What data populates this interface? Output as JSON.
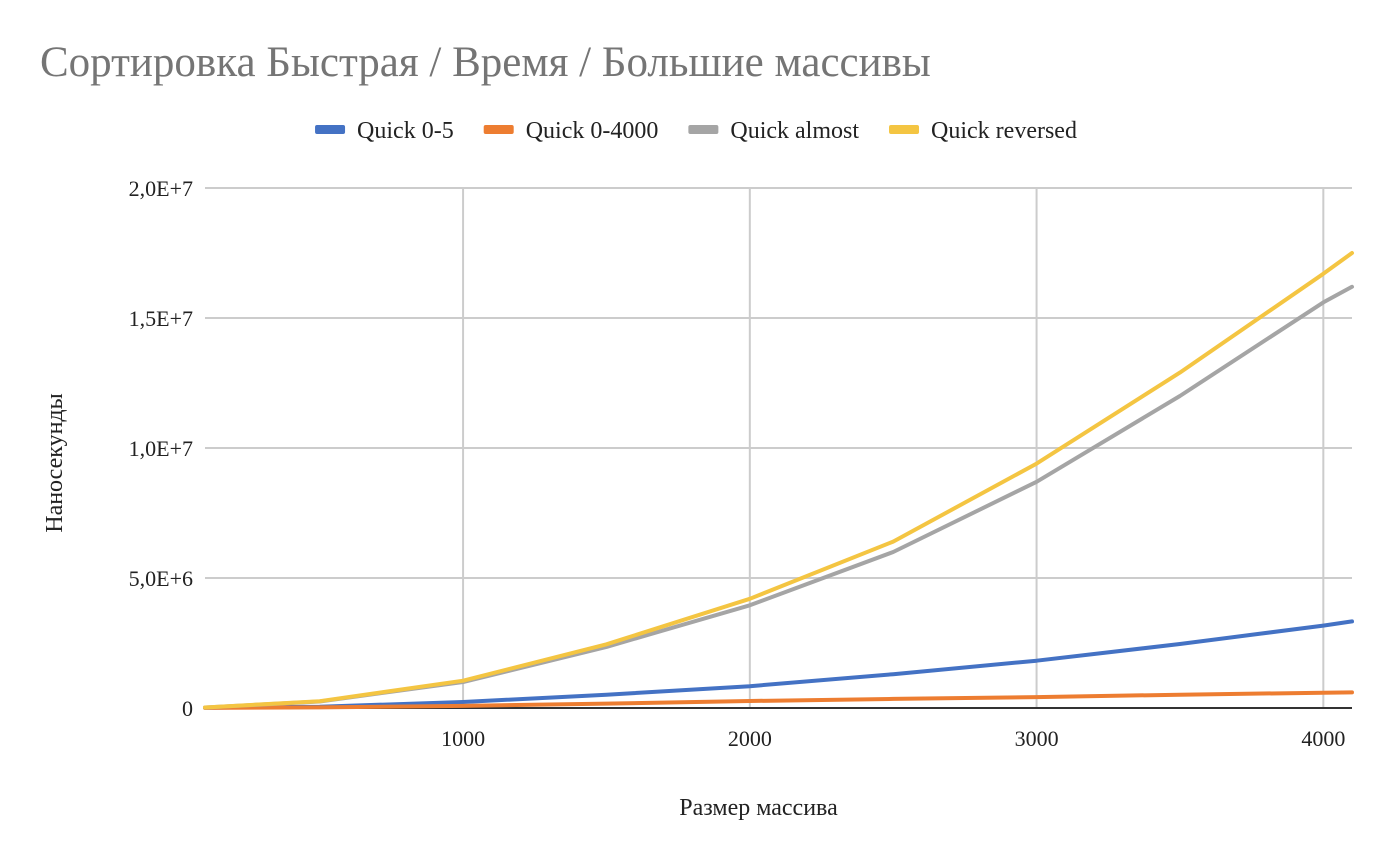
{
  "chart_data": {
    "type": "line",
    "title": "Сортировка Быстрая / Время / Большие массивы",
    "xlabel": "Размер массива",
    "ylabel": "Наносекунды",
    "xlim": [
      100,
      4100
    ],
    "ylim": [
      0,
      20000000
    ],
    "x_ticks": [
      1000,
      2000,
      3000,
      4000
    ],
    "x_tick_labels": [
      "1000",
      "2000",
      "3000",
      "4000"
    ],
    "y_ticks": [
      0,
      5000000,
      10000000,
      15000000,
      20000000
    ],
    "y_tick_labels": [
      "0",
      "5,0E+6",
      "1,0E+7",
      "1,5E+7",
      "2,0E+7"
    ],
    "grid": true,
    "legend_position": "top",
    "x": [
      100,
      500,
      1000,
      1500,
      2000,
      2500,
      3000,
      3500,
      4000,
      4100
    ],
    "series": [
      {
        "name": "Quick 0-5",
        "color": "#4472c4",
        "values": [
          10000,
          50000,
          230000,
          510000,
          840000,
          1300000,
          1820000,
          2460000,
          3170000,
          3330000
        ]
      },
      {
        "name": "Quick 0-4000",
        "color": "#ed7d31",
        "values": [
          5000,
          25000,
          80000,
          170000,
          270000,
          350000,
          420000,
          510000,
          590000,
          600000
        ]
      },
      {
        "name": "Quick almost",
        "color": "#a5a5a5",
        "values": [
          20000,
          250000,
          1000000,
          2350000,
          3950000,
          6000000,
          8700000,
          12000000,
          15600000,
          16200000
        ]
      },
      {
        "name": "Quick reversed",
        "color": "#f4c542",
        "values": [
          20000,
          260000,
          1050000,
          2450000,
          4200000,
          6400000,
          9400000,
          12900000,
          16700000,
          17500000
        ]
      }
    ]
  }
}
